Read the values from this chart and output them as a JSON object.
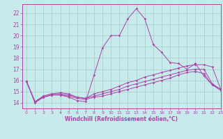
{
  "xlabel": "Windchill (Refroidissement éolien,°C)",
  "background_color": "#c8eaea",
  "line_color": "#aa44aa",
  "grid_color": "#a0cccc",
  "xlim": [
    -0.5,
    23
  ],
  "ylim": [
    13.5,
    22.8
  ],
  "x_ticks": [
    0,
    1,
    2,
    3,
    4,
    5,
    6,
    7,
    8,
    9,
    10,
    11,
    12,
    13,
    14,
    15,
    16,
    17,
    18,
    19,
    20,
    21,
    22,
    23
  ],
  "y_ticks": [
    14,
    15,
    16,
    17,
    18,
    19,
    20,
    21,
    22
  ],
  "hours": [
    0,
    1,
    2,
    3,
    4,
    5,
    6,
    7,
    8,
    9,
    10,
    11,
    12,
    13,
    14,
    15,
    16,
    17,
    18,
    19,
    20,
    21,
    22,
    23
  ],
  "line1": [
    15.9,
    14.0,
    14.5,
    14.7,
    14.7,
    14.5,
    14.2,
    14.1,
    16.5,
    18.9,
    20.0,
    20.0,
    21.5,
    22.4,
    21.5,
    19.2,
    18.5,
    17.6,
    17.5,
    17.0,
    17.5,
    16.4,
    15.6,
    15.2
  ],
  "line2": [
    15.9,
    14.1,
    14.6,
    14.8,
    14.9,
    14.8,
    14.5,
    14.4,
    14.8,
    15.0,
    15.2,
    15.5,
    15.8,
    16.0,
    16.3,
    16.5,
    16.7,
    16.9,
    17.1,
    17.3,
    17.4,
    17.4,
    17.2,
    15.2
  ],
  "line3": [
    15.9,
    14.1,
    14.6,
    14.8,
    14.8,
    14.7,
    14.5,
    14.4,
    14.6,
    14.8,
    15.0,
    15.2,
    15.5,
    15.7,
    15.9,
    16.1,
    16.3,
    16.5,
    16.7,
    16.9,
    17.0,
    17.0,
    15.7,
    15.2
  ],
  "line4": [
    15.9,
    14.1,
    14.5,
    14.7,
    14.7,
    14.6,
    14.4,
    14.3,
    14.5,
    14.6,
    14.8,
    15.0,
    15.2,
    15.4,
    15.6,
    15.8,
    16.0,
    16.2,
    16.5,
    16.7,
    16.8,
    16.6,
    15.6,
    15.1
  ]
}
